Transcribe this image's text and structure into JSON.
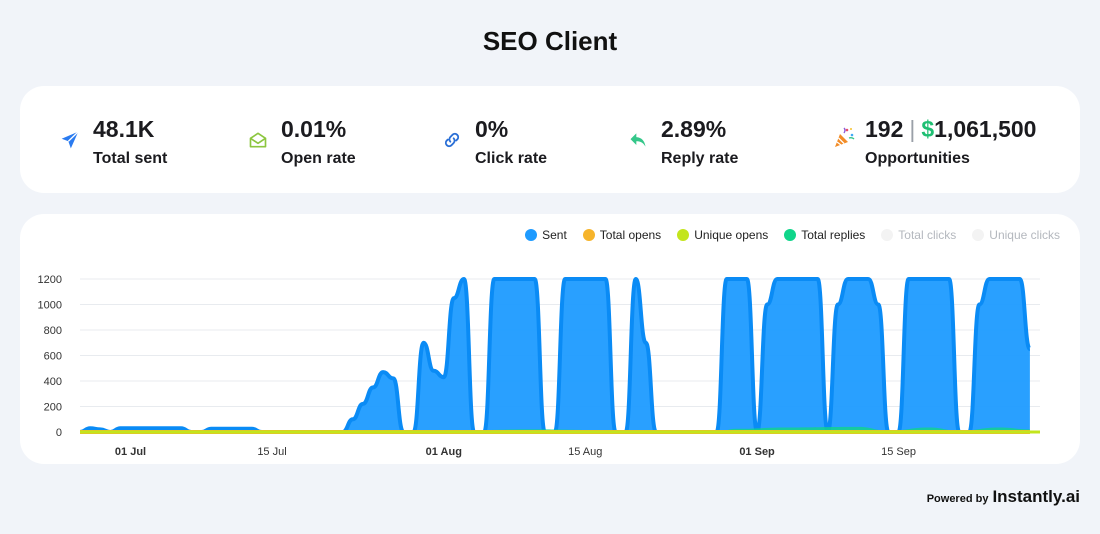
{
  "title": "SEO Client",
  "stats": [
    {
      "value": "48.1K",
      "label": "Total sent",
      "icon": "paper-plane-icon"
    },
    {
      "value": "0.01%",
      "label": "Open rate",
      "icon": "envelope-open-icon"
    },
    {
      "value": "0%",
      "label": "Click rate",
      "icon": "link-icon"
    },
    {
      "value": "2.89%",
      "label": "Reply rate",
      "icon": "reply-icon"
    },
    {
      "value": "192",
      "money_sign": "$",
      "money": "1,061,500",
      "separator": "|",
      "label": "Opportunities",
      "icon": "party-popper-icon"
    }
  ],
  "colors": {
    "sent": "#1e9bff",
    "sent_stroke": "#0a8bf5",
    "total_opens": "#f6b42b",
    "unique_opens": "#c3e51d",
    "total_replies": "#10d58a",
    "total_clicks": "#f3f3f3",
    "unique_clicks": "#f3f3f3"
  },
  "footer": {
    "powered_by": "Powered by",
    "brand": "Instantly.ai"
  },
  "chart_data": {
    "type": "area",
    "legend_position": "top-right",
    "ylim": [
      0,
      1200
    ],
    "yticks": [
      0,
      200,
      400,
      600,
      800,
      1000,
      1200
    ],
    "x_start": "2024-06-26",
    "x_end": "2024-09-29",
    "xticks": [
      {
        "label": "01 Jul",
        "date": "2024-07-01",
        "major": true
      },
      {
        "label": "15 Jul",
        "date": "2024-07-15",
        "major": false
      },
      {
        "label": "01 Aug",
        "date": "2024-08-01",
        "major": true
      },
      {
        "label": "15 Aug",
        "date": "2024-08-15",
        "major": false
      },
      {
        "label": "01 Sep",
        "date": "2024-09-01",
        "major": true
      },
      {
        "label": "15 Sep",
        "date": "2024-09-15",
        "major": false
      }
    ],
    "grid": true,
    "series": [
      {
        "name": "Sent",
        "color_key": "sent",
        "points": [
          [
            "2024-06-26",
            0
          ],
          [
            "2024-06-27",
            30
          ],
          [
            "2024-06-28",
            20
          ],
          [
            "2024-06-29",
            0
          ],
          [
            "2024-06-30",
            30
          ],
          [
            "2024-07-01",
            30
          ],
          [
            "2024-07-02",
            30
          ],
          [
            "2024-07-03",
            30
          ],
          [
            "2024-07-04",
            30
          ],
          [
            "2024-07-05",
            30
          ],
          [
            "2024-07-06",
            30
          ],
          [
            "2024-07-07",
            0
          ],
          [
            "2024-07-08",
            0
          ],
          [
            "2024-07-09",
            25
          ],
          [
            "2024-07-10",
            25
          ],
          [
            "2024-07-11",
            25
          ],
          [
            "2024-07-12",
            25
          ],
          [
            "2024-07-13",
            25
          ],
          [
            "2024-07-14",
            0
          ],
          [
            "2024-07-15",
            0
          ],
          [
            "2024-07-16",
            0
          ],
          [
            "2024-07-17",
            0
          ],
          [
            "2024-07-18",
            0
          ],
          [
            "2024-07-19",
            0
          ],
          [
            "2024-07-20",
            0
          ],
          [
            "2024-07-21",
            0
          ],
          [
            "2024-07-22",
            0
          ],
          [
            "2024-07-23",
            100
          ],
          [
            "2024-07-24",
            220
          ],
          [
            "2024-07-25",
            350
          ],
          [
            "2024-07-26",
            470
          ],
          [
            "2024-07-27",
            420
          ],
          [
            "2024-07-28",
            0
          ],
          [
            "2024-07-29",
            0
          ],
          [
            "2024-07-30",
            700
          ],
          [
            "2024-07-31",
            480
          ],
          [
            "2024-08-01",
            430
          ],
          [
            "2024-08-02",
            1050
          ],
          [
            "2024-08-03",
            1200
          ],
          [
            "2024-08-04",
            0
          ],
          [
            "2024-08-05",
            0
          ],
          [
            "2024-08-06",
            1200
          ],
          [
            "2024-08-07",
            1200
          ],
          [
            "2024-08-08",
            1200
          ],
          [
            "2024-08-09",
            1200
          ],
          [
            "2024-08-10",
            1200
          ],
          [
            "2024-08-11",
            0
          ],
          [
            "2024-08-12",
            0
          ],
          [
            "2024-08-13",
            1200
          ],
          [
            "2024-08-14",
            1200
          ],
          [
            "2024-08-15",
            1200
          ],
          [
            "2024-08-16",
            1200
          ],
          [
            "2024-08-17",
            1200
          ],
          [
            "2024-08-18",
            0
          ],
          [
            "2024-08-19",
            0
          ],
          [
            "2024-08-20",
            1200
          ],
          [
            "2024-08-21",
            700
          ],
          [
            "2024-08-22",
            0
          ],
          [
            "2024-08-23",
            0
          ],
          [
            "2024-08-24",
            0
          ],
          [
            "2024-08-25",
            0
          ],
          [
            "2024-08-26",
            0
          ],
          [
            "2024-08-27",
            0
          ],
          [
            "2024-08-28",
            0
          ],
          [
            "2024-08-29",
            1200
          ],
          [
            "2024-08-30",
            1200
          ],
          [
            "2024-08-31",
            1200
          ],
          [
            "2024-09-01",
            0
          ],
          [
            "2024-09-02",
            1000
          ],
          [
            "2024-09-03",
            1200
          ],
          [
            "2024-09-04",
            1200
          ],
          [
            "2024-09-05",
            1200
          ],
          [
            "2024-09-06",
            1200
          ],
          [
            "2024-09-07",
            1200
          ],
          [
            "2024-09-08",
            0
          ],
          [
            "2024-09-09",
            1000
          ],
          [
            "2024-09-10",
            1200
          ],
          [
            "2024-09-11",
            1200
          ],
          [
            "2024-09-12",
            1200
          ],
          [
            "2024-09-13",
            1000
          ],
          [
            "2024-09-14",
            0
          ],
          [
            "2024-09-15",
            0
          ],
          [
            "2024-09-16",
            1200
          ],
          [
            "2024-09-17",
            1200
          ],
          [
            "2024-09-18",
            1200
          ],
          [
            "2024-09-19",
            1200
          ],
          [
            "2024-09-20",
            1200
          ],
          [
            "2024-09-21",
            0
          ],
          [
            "2024-09-22",
            0
          ],
          [
            "2024-09-23",
            1000
          ],
          [
            "2024-09-24",
            1200
          ],
          [
            "2024-09-25",
            1200
          ],
          [
            "2024-09-26",
            1200
          ],
          [
            "2024-09-27",
            1200
          ],
          [
            "2024-09-28",
            650
          ]
        ]
      },
      {
        "name": "Total replies",
        "color_key": "total_replies",
        "points": [
          [
            "2024-06-26",
            0
          ],
          [
            "2024-07-22",
            0
          ],
          [
            "2024-07-23",
            5
          ],
          [
            "2024-07-27",
            5
          ],
          [
            "2024-07-28",
            0
          ],
          [
            "2024-07-29",
            5
          ],
          [
            "2024-08-03",
            15
          ],
          [
            "2024-08-10",
            20
          ],
          [
            "2024-08-17",
            15
          ],
          [
            "2024-08-21",
            10
          ],
          [
            "2024-08-22",
            0
          ],
          [
            "2024-08-28",
            0
          ],
          [
            "2024-08-30",
            25
          ],
          [
            "2024-09-04",
            35
          ],
          [
            "2024-09-11",
            40
          ],
          [
            "2024-09-14",
            10
          ],
          [
            "2024-09-18",
            35
          ],
          [
            "2024-09-21",
            10
          ],
          [
            "2024-09-25",
            35
          ],
          [
            "2024-09-28",
            20
          ]
        ]
      },
      {
        "name": "Unique opens",
        "color_key": "unique_opens",
        "points": [
          [
            "2024-06-26",
            0
          ],
          [
            "2024-09-28",
            0
          ]
        ]
      },
      {
        "name": "Total opens",
        "color_key": "total_opens",
        "points": [
          [
            "2024-06-26",
            0
          ],
          [
            "2024-09-28",
            0
          ]
        ]
      }
    ],
    "legend": [
      {
        "name": "Sent",
        "color_key": "sent",
        "active": true
      },
      {
        "name": "Total opens",
        "color_key": "total_opens",
        "active": true
      },
      {
        "name": "Unique opens",
        "color_key": "unique_opens",
        "active": true
      },
      {
        "name": "Total replies",
        "color_key": "total_replies",
        "active": true
      },
      {
        "name": "Total clicks",
        "color_key": "total_clicks",
        "active": false
      },
      {
        "name": "Unique clicks",
        "color_key": "unique_clicks",
        "active": false
      }
    ]
  }
}
